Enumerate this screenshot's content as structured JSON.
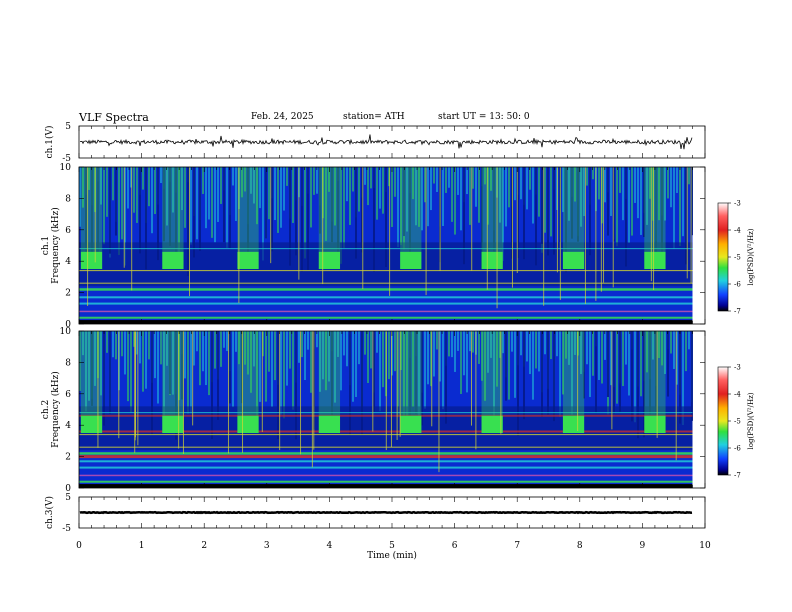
{
  "header": {
    "title": "VLF  Spectra",
    "date": "Feb. 24,  2025",
    "station": "station= ATH",
    "start": "start  UT  =   13: 50: 0"
  },
  "colors": {
    "spec_bg": "#0a2bd0",
    "spec_dark": "#041a8a",
    "band_green": "#38e050",
    "band_cyan": "#22c8d8",
    "line_yellow": "#d8d830",
    "line_red": "#e03020",
    "line_magenta": "#c050b0"
  },
  "chart_data": [
    {
      "type": "line",
      "panel": "ch1-waveform",
      "ylabel": "ch.1(V)",
      "ylim": [
        -5,
        5
      ],
      "yticks": [
        "5",
        "-5"
      ],
      "xlim": [
        0,
        10
      ],
      "baseline": 0,
      "noise_amplitude": 0.6
    },
    {
      "type": "heatmap",
      "panel": "ch1-spectrogram",
      "ylabel_top": "ch.1",
      "ylabel": "Frequency  (kHz)",
      "ylim": [
        0,
        10
      ],
      "yticks": [
        "0",
        "2",
        "4",
        "6",
        "8",
        "10"
      ],
      "xlim": [
        0,
        10
      ],
      "burst_centers_min": [
        0.2,
        1.5,
        2.7,
        4.0,
        5.3,
        6.6,
        7.9,
        9.2
      ],
      "burst_band_khz": [
        3.5,
        4.6
      ],
      "colorbar": {
        "label": "log(PSD)(V²/Hz)",
        "ticks": [
          "-3",
          "-4",
          "-5",
          "-6",
          "-7"
        ],
        "range": [
          -7,
          -3
        ]
      }
    },
    {
      "type": "heatmap",
      "panel": "ch2-spectrogram",
      "ylabel_top": "ch.2",
      "ylabel": "Frequency  (kHz)",
      "ylim": [
        0,
        10
      ],
      "yticks": [
        "0",
        "2",
        "4",
        "6",
        "8",
        "10"
      ],
      "xlim": [
        0,
        10
      ],
      "burst_centers_min": [
        0.2,
        1.5,
        2.7,
        4.0,
        5.3,
        6.6,
        7.9,
        9.2
      ],
      "burst_band_khz": [
        3.5,
        4.6
      ],
      "colorbar": {
        "label": "log(PSD)(V²/Hz)",
        "ticks": [
          "-3",
          "-4",
          "-5",
          "-6",
          "-7"
        ],
        "range": [
          -7,
          -3
        ]
      }
    },
    {
      "type": "line",
      "panel": "ch3-waveform",
      "ylabel": "ch.3(V)",
      "ylim": [
        -5,
        5
      ],
      "yticks": [
        "5",
        "-5"
      ],
      "xlim": [
        0,
        10
      ],
      "baseline": 0,
      "noise_amplitude": 0.1
    }
  ],
  "xaxis": {
    "label": "Time  (min)",
    "ticks": [
      "0",
      "1",
      "2",
      "3",
      "4",
      "5",
      "6",
      "7",
      "8",
      "9",
      "10"
    ],
    "data_end": 9.8
  }
}
